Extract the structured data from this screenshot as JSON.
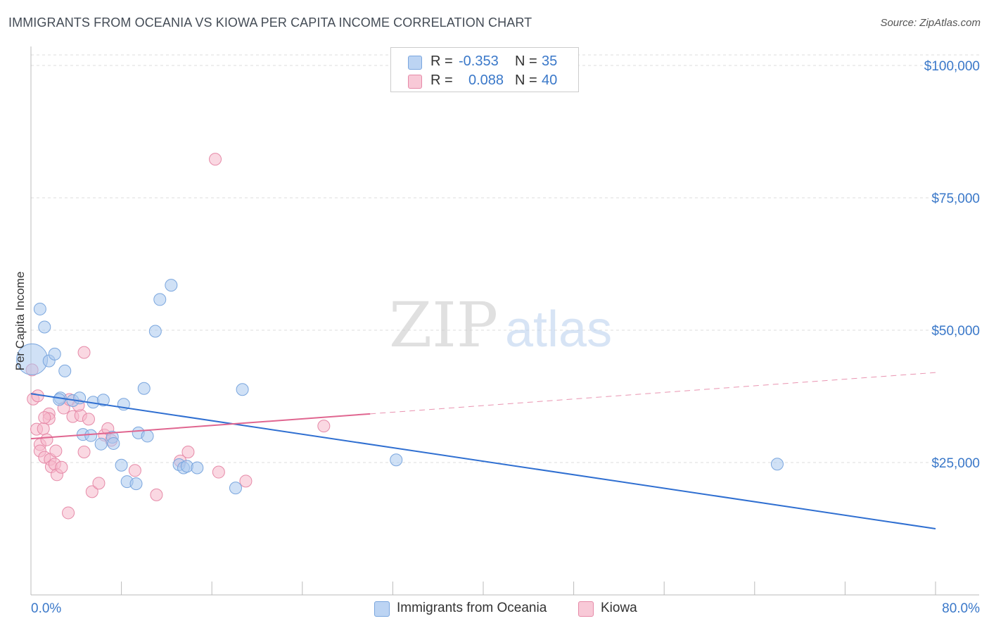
{
  "header": {
    "title": "IMMIGRANTS FROM OCEANIA VS KIOWA PER CAPITA INCOME CORRELATION CHART",
    "source": "Source: ZipAtlas.com"
  },
  "colors": {
    "blue_fill": "#a9c8ef",
    "blue_stroke": "#7aa6de",
    "blue_line": "#2f6fd1",
    "pink_fill": "#f5b8cb",
    "pink_stroke": "#e68aa8",
    "pink_line": "#e06690",
    "axis_text": "#3a78c9",
    "grid": "#dddddd"
  },
  "legend": {
    "series": [
      {
        "r_label": "R =",
        "r_value": "-0.353",
        "n_label": "N =",
        "n_value": "35"
      },
      {
        "r_label": "R =",
        "r_value": "0.088",
        "n_label": "N =",
        "n_value": "40"
      }
    ]
  },
  "watermark": {
    "part1": "ZIP",
    "part2": "atlas"
  },
  "chart_data": {
    "type": "scatter",
    "title": "IMMIGRANTS FROM OCEANIA VS KIOWA PER CAPITA INCOME CORRELATION CHART",
    "xlabel": "",
    "ylabel": "Per Capita Income",
    "xlim": [
      0,
      80
    ],
    "ylim": [
      0,
      102000
    ],
    "x_tick_labels": [
      "0.0%",
      "80.0%"
    ],
    "y_ticks": [
      25000,
      50000,
      75000,
      100000
    ],
    "y_tick_labels": [
      "$25,000",
      "$50,000",
      "$75,000",
      "$100,000"
    ],
    "series": [
      {
        "name": "Immigrants from Oceania",
        "color": "#a9c8ef",
        "r": -0.353,
        "n": 35,
        "trend": {
          "x0": 0,
          "y0": 38000,
          "x1": 80,
          "y1": 12500
        },
        "points": [
          {
            "x": 0.1,
            "y": 44500,
            "big": true
          },
          {
            "x": 0.8,
            "y": 54000
          },
          {
            "x": 1.2,
            "y": 50600
          },
          {
            "x": 1.6,
            "y": 44200
          },
          {
            "x": 2.1,
            "y": 45500
          },
          {
            "x": 3.0,
            "y": 42300
          },
          {
            "x": 2.6,
            "y": 37200
          },
          {
            "x": 3.7,
            "y": 36700
          },
          {
            "x": 4.3,
            "y": 37200
          },
          {
            "x": 5.5,
            "y": 36400
          },
          {
            "x": 6.4,
            "y": 36800
          },
          {
            "x": 8.2,
            "y": 36000
          },
          {
            "x": 4.6,
            "y": 30300
          },
          {
            "x": 5.3,
            "y": 30100
          },
          {
            "x": 6.2,
            "y": 28500
          },
          {
            "x": 7.2,
            "y": 29800
          },
          {
            "x": 7.3,
            "y": 28600
          },
          {
            "x": 9.5,
            "y": 30600
          },
          {
            "x": 10.3,
            "y": 30000
          },
          {
            "x": 10.0,
            "y": 39000
          },
          {
            "x": 11.0,
            "y": 49800
          },
          {
            "x": 11.4,
            "y": 55800
          },
          {
            "x": 12.4,
            "y": 58500
          },
          {
            "x": 8.0,
            "y": 24500
          },
          {
            "x": 8.5,
            "y": 21400
          },
          {
            "x": 9.3,
            "y": 21000
          },
          {
            "x": 13.1,
            "y": 24600
          },
          {
            "x": 13.5,
            "y": 24000
          },
          {
            "x": 13.8,
            "y": 24300
          },
          {
            "x": 14.7,
            "y": 24000
          },
          {
            "x": 18.7,
            "y": 38800
          },
          {
            "x": 18.1,
            "y": 20200
          },
          {
            "x": 32.3,
            "y": 25500
          },
          {
            "x": 66.0,
            "y": 24700
          },
          {
            "x": 2.5,
            "y": 36900
          }
        ]
      },
      {
        "name": "Kiowa",
        "color": "#f5b8cb",
        "r": 0.088,
        "n": 40,
        "trend": {
          "x0": 0,
          "y0": 29500,
          "x1": 30,
          "y1": 34200
        },
        "trend_dashed": {
          "x0": 30,
          "y0": 34200,
          "x1": 80,
          "y1": 42000
        },
        "points": [
          {
            "x": 0.1,
            "y": 42500
          },
          {
            "x": 0.2,
            "y": 37000
          },
          {
            "x": 0.6,
            "y": 37600
          },
          {
            "x": 0.5,
            "y": 31300
          },
          {
            "x": 1.1,
            "y": 31400
          },
          {
            "x": 0.8,
            "y": 28400
          },
          {
            "x": 0.8,
            "y": 27200
          },
          {
            "x": 1.4,
            "y": 29300
          },
          {
            "x": 1.2,
            "y": 26000
          },
          {
            "x": 1.7,
            "y": 25600
          },
          {
            "x": 1.8,
            "y": 24200
          },
          {
            "x": 2.1,
            "y": 24700
          },
          {
            "x": 2.3,
            "y": 22700
          },
          {
            "x": 2.7,
            "y": 24100
          },
          {
            "x": 1.6,
            "y": 34200
          },
          {
            "x": 1.6,
            "y": 33300
          },
          {
            "x": 1.2,
            "y": 33500
          },
          {
            "x": 2.9,
            "y": 35300
          },
          {
            "x": 3.4,
            "y": 36900
          },
          {
            "x": 3.7,
            "y": 33700
          },
          {
            "x": 4.4,
            "y": 33900
          },
          {
            "x": 5.1,
            "y": 33200
          },
          {
            "x": 4.7,
            "y": 45800
          },
          {
            "x": 2.2,
            "y": 27200
          },
          {
            "x": 4.7,
            "y": 27000
          },
          {
            "x": 6.5,
            "y": 30200
          },
          {
            "x": 6.8,
            "y": 31400
          },
          {
            "x": 7.1,
            "y": 29200
          },
          {
            "x": 5.4,
            "y": 19500
          },
          {
            "x": 6.0,
            "y": 21100
          },
          {
            "x": 3.3,
            "y": 15500
          },
          {
            "x": 9.2,
            "y": 23500
          },
          {
            "x": 11.1,
            "y": 18900
          },
          {
            "x": 13.2,
            "y": 25300
          },
          {
            "x": 13.9,
            "y": 27000
          },
          {
            "x": 16.3,
            "y": 82300
          },
          {
            "x": 16.6,
            "y": 23200
          },
          {
            "x": 19.0,
            "y": 21500
          },
          {
            "x": 25.9,
            "y": 31900
          },
          {
            "x": 4.2,
            "y": 35800
          }
        ]
      }
    ]
  }
}
